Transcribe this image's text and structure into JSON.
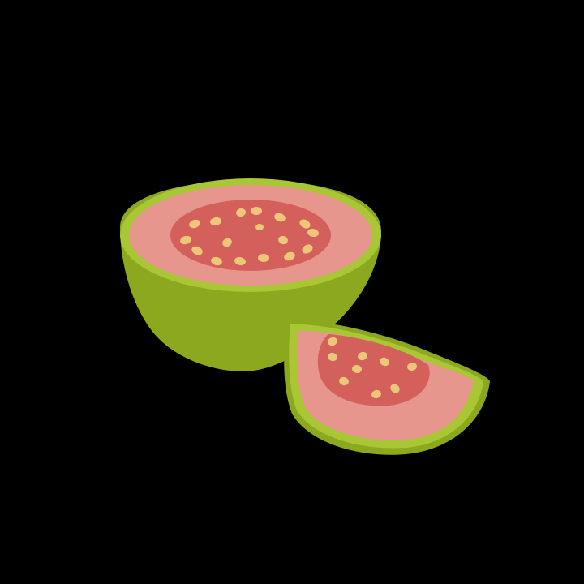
{
  "background": "#000000",
  "colors": {
    "rind_dark": "#8ca81e",
    "rind_light": "#a9c634",
    "flesh_outer": "#e6968c",
    "flesh_inner": "#d4605c",
    "seed": "#ecc679"
  },
  "illustration": {
    "subject": "guava",
    "parts": [
      "half-guava",
      "guava-wedge"
    ],
    "seed_counts": {
      "half": 17,
      "wedge": 9
    }
  }
}
